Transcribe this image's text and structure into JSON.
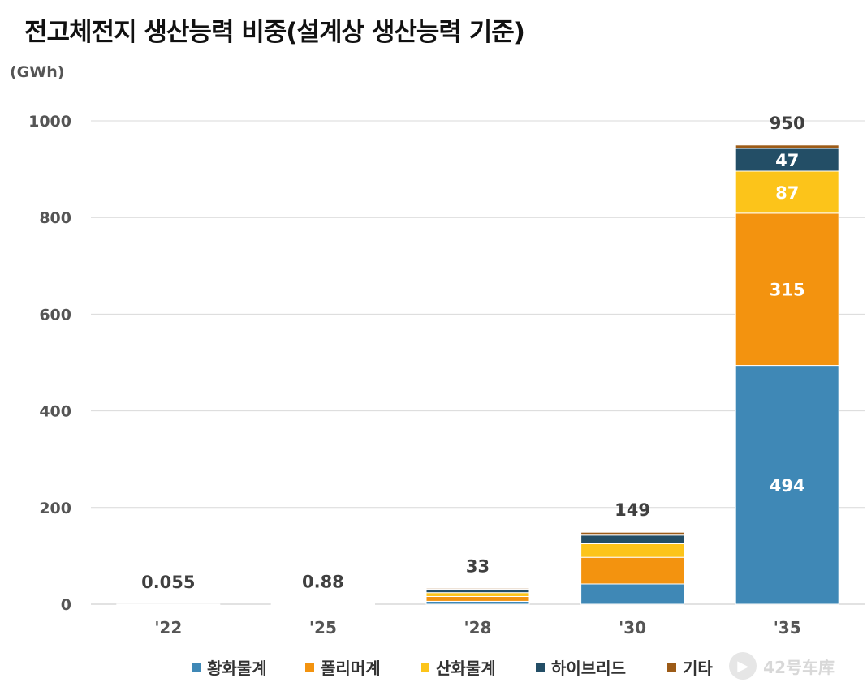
{
  "title": "전고체전지 생산능력 비중(설계상 생산능력 기준)",
  "unit_label": "(GWh)",
  "watermark": "42号车库",
  "colors": {
    "text": "#555555",
    "grid": "#d9d9d9",
    "total_label": "#404040",
    "segment_label": "#ffffff"
  },
  "chart_data": {
    "type": "bar",
    "stacked": true,
    "title": "전고체전지 생산능력 비중(설계상 생산능력 기준)",
    "ylabel": "(GWh)",
    "ylim": [
      0,
      1000
    ],
    "yticks": [
      0,
      200,
      400,
      600,
      800,
      1000
    ],
    "grid": true,
    "legend_position": "bottom",
    "categories": [
      "'22",
      "'25",
      "'28",
      "'30",
      "'35"
    ],
    "totals": [
      0.055,
      0.88,
      33,
      149,
      950
    ],
    "total_labels": [
      "0.055",
      "0.88",
      "33",
      "149",
      "950"
    ],
    "series": [
      {
        "name": "황화물계",
        "color": "#3f88b6",
        "values": [
          0.0,
          0.1,
          6,
          42,
          494
        ],
        "show_labels": [
          false,
          false,
          false,
          false,
          true
        ]
      },
      {
        "name": "폴리머계",
        "color": "#f3930f",
        "values": [
          0.055,
          0.7,
          10,
          55,
          315
        ],
        "show_labels": [
          false,
          false,
          false,
          false,
          true
        ]
      },
      {
        "name": "산화물계",
        "color": "#fcc41a",
        "values": [
          0.0,
          0.05,
          8,
          28,
          87
        ],
        "show_labels": [
          false,
          false,
          false,
          false,
          true
        ]
      },
      {
        "name": "하이브리드",
        "color": "#234e66",
        "values": [
          0.0,
          0.02,
          7,
          18,
          47
        ],
        "show_labels": [
          false,
          false,
          false,
          false,
          true
        ]
      },
      {
        "name": "기타",
        "color": "#9c5b17",
        "values": [
          0.0,
          0.01,
          2,
          6,
          7
        ],
        "show_labels": [
          false,
          false,
          false,
          false,
          false
        ]
      }
    ]
  }
}
